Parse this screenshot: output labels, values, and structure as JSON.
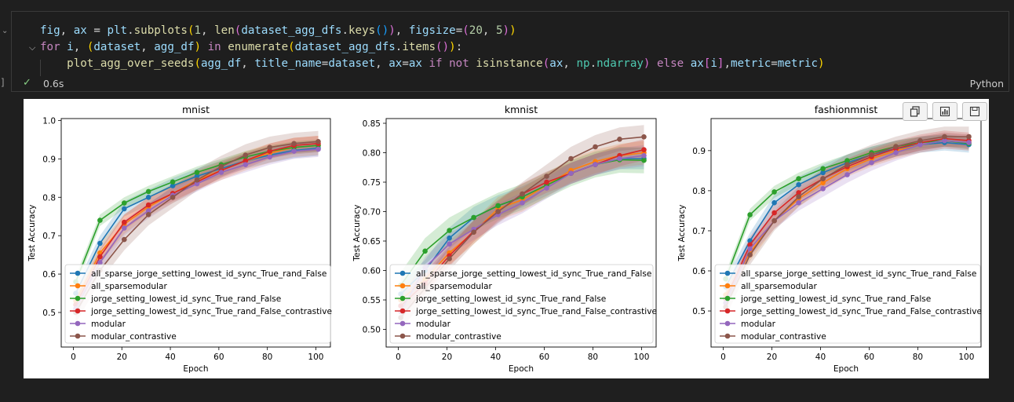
{
  "cell": {
    "code_tokens": [
      [
        [
          "var",
          "fig"
        ],
        [
          "pun",
          ", "
        ],
        [
          "var",
          "ax"
        ],
        [
          "pun",
          " = "
        ],
        [
          "var",
          "plt"
        ],
        [
          "pun",
          "."
        ],
        [
          "fn",
          "subplots"
        ],
        [
          "b1",
          "("
        ],
        [
          "num",
          "1"
        ],
        [
          "pun",
          ", "
        ],
        [
          "fn",
          "len"
        ],
        [
          "b2",
          "("
        ],
        [
          "var",
          "dataset_agg_dfs"
        ],
        [
          "pun",
          "."
        ],
        [
          "fn",
          "keys"
        ],
        [
          "b3",
          "()"
        ],
        [
          "b2",
          ")"
        ],
        [
          "pun",
          ", "
        ],
        [
          "var",
          "figsize"
        ],
        [
          "pun",
          "="
        ],
        [
          "b2",
          "("
        ],
        [
          "num",
          "20"
        ],
        [
          "pun",
          ", "
        ],
        [
          "num",
          "5"
        ],
        [
          "b2",
          ")"
        ],
        [
          "b1",
          ")"
        ]
      ],
      [
        [
          "kw",
          "for"
        ],
        [
          "pun",
          " "
        ],
        [
          "var",
          "i"
        ],
        [
          "pun",
          ", "
        ],
        [
          "b1",
          "("
        ],
        [
          "var",
          "dataset"
        ],
        [
          "pun",
          ", "
        ],
        [
          "var",
          "agg_df"
        ],
        [
          "b1",
          ")"
        ],
        [
          "pun",
          " "
        ],
        [
          "kw",
          "in"
        ],
        [
          "pun",
          " "
        ],
        [
          "fn",
          "enumerate"
        ],
        [
          "b1",
          "("
        ],
        [
          "var",
          "dataset_agg_dfs"
        ],
        [
          "pun",
          "."
        ],
        [
          "fn",
          "items"
        ],
        [
          "b2",
          "()"
        ],
        [
          "b1",
          ")"
        ],
        [
          "pun",
          ":"
        ]
      ],
      [
        [
          "pun",
          "    "
        ],
        [
          "fn",
          "plot_agg_over_seeds"
        ],
        [
          "b1",
          "("
        ],
        [
          "var",
          "agg_df"
        ],
        [
          "pun",
          ", "
        ],
        [
          "var",
          "title_name"
        ],
        [
          "pun",
          "="
        ],
        [
          "var",
          "dataset"
        ],
        [
          "pun",
          ", "
        ],
        [
          "var",
          "ax"
        ],
        [
          "pun",
          "="
        ],
        [
          "var",
          "ax"
        ],
        [
          "pun",
          " "
        ],
        [
          "kw",
          "if"
        ],
        [
          "pun",
          " "
        ],
        [
          "kw",
          "not"
        ],
        [
          "pun",
          " "
        ],
        [
          "fn",
          "isinstance"
        ],
        [
          "b2",
          "("
        ],
        [
          "var",
          "ax"
        ],
        [
          "pun",
          ", "
        ],
        [
          "cls",
          "np"
        ],
        [
          "pun",
          "."
        ],
        [
          "cls",
          "ndarray"
        ],
        [
          "b2",
          ")"
        ],
        [
          "pun",
          " "
        ],
        [
          "kw",
          "else"
        ],
        [
          "pun",
          " "
        ],
        [
          "var",
          "ax"
        ],
        [
          "b2",
          "["
        ],
        [
          "var",
          "i"
        ],
        [
          "b2",
          "]"
        ],
        [
          "pun",
          ","
        ],
        [
          "var",
          "metric"
        ],
        [
          "pun",
          "="
        ],
        [
          "var",
          "metric"
        ],
        [
          "b1",
          ")"
        ]
      ]
    ],
    "exec_time": "0.6s",
    "language": "Python",
    "exec_bracket": "]",
    "colors": {
      "success": "#89d185",
      "background": "#1f1f1f"
    }
  },
  "toolbar": {
    "icons": [
      "copy-icon",
      "chart-icon",
      "save-icon"
    ]
  },
  "chart_data": [
    {
      "type": "line",
      "title": "mnist",
      "xlabel": "Epoch",
      "ylabel": "Test Accuracy",
      "xlim": [
        -5,
        106
      ],
      "ylim": [
        0.41,
        1.005
      ],
      "xticks": [
        0,
        20,
        40,
        60,
        80,
        100
      ],
      "yticks": [
        0.5,
        0.6,
        0.7,
        0.8,
        0.9,
        1.0
      ],
      "ytick_labels": [
        "0.5",
        "0.6",
        "0.7",
        "0.8",
        "0.9",
        "1.0"
      ],
      "grid": false,
      "legend": "lower-left",
      "x": [
        1,
        11,
        21,
        31,
        41,
        51,
        61,
        71,
        81,
        91,
        101
      ],
      "series": [
        {
          "name": "all_sparse_jorge_setting_lowest_id_sync_True_rand_False",
          "color": "#1f77b4",
          "values": [
            0.55,
            0.68,
            0.77,
            0.8,
            0.83,
            0.855,
            0.875,
            0.895,
            0.91,
            0.922,
            0.928
          ],
          "band": 0.02
        },
        {
          "name": "all_sparsemodular",
          "color": "#ff7f0e",
          "values": [
            0.53,
            0.655,
            0.73,
            0.775,
            0.81,
            0.845,
            0.87,
            0.895,
            0.915,
            0.93,
            0.935
          ],
          "band": 0.025
        },
        {
          "name": "jorge_setting_lowest_id_sync_True_rand_False",
          "color": "#2ca02c",
          "values": [
            0.58,
            0.74,
            0.785,
            0.815,
            0.84,
            0.865,
            0.885,
            0.905,
            0.92,
            0.93,
            0.935
          ],
          "band": 0.015
        },
        {
          "name": "jorge_setting_lowest_id_sync_True_rand_False_contrastive",
          "color": "#d62728",
          "values": [
            0.52,
            0.645,
            0.735,
            0.78,
            0.81,
            0.84,
            0.87,
            0.895,
            0.92,
            0.935,
            0.94
          ],
          "band": 0.02
        },
        {
          "name": "modular",
          "color": "#9467bd",
          "values": [
            0.51,
            0.63,
            0.72,
            0.765,
            0.805,
            0.835,
            0.865,
            0.885,
            0.905,
            0.92,
            0.925
          ],
          "band": 0.02
        },
        {
          "name": "modular_contrastive",
          "color": "#8c564b",
          "values": [
            0.5,
            0.61,
            0.69,
            0.755,
            0.8,
            0.845,
            0.88,
            0.91,
            0.93,
            0.94,
            0.945
          ],
          "band": 0.028
        }
      ]
    },
    {
      "type": "line",
      "title": "kmnist",
      "xlabel": "Epoch",
      "ylabel": "Test Accuracy",
      "xlim": [
        -5,
        106
      ],
      "ylim": [
        0.47,
        0.858
      ],
      "xticks": [
        0,
        20,
        40,
        60,
        80,
        100
      ],
      "yticks": [
        0.5,
        0.55,
        0.6,
        0.65,
        0.7,
        0.75,
        0.8,
        0.85
      ],
      "ytick_labels": [
        "0.50",
        "0.55",
        "0.60",
        "0.65",
        "0.70",
        "0.75",
        "0.80",
        "0.85"
      ],
      "grid": false,
      "legend": "lower-left",
      "x": [
        1,
        11,
        21,
        31,
        41,
        51,
        61,
        71,
        81,
        91,
        101
      ],
      "series": [
        {
          "name": "all_sparse_jorge_setting_lowest_id_sync_True_rand_False",
          "color": "#1f77b4",
          "values": [
            0.56,
            0.6,
            0.655,
            0.69,
            0.71,
            0.725,
            0.745,
            0.765,
            0.78,
            0.79,
            0.79
          ],
          "band": 0.018
        },
        {
          "name": "all_sparsemodular",
          "color": "#ff7f0e",
          "values": [
            0.55,
            0.585,
            0.63,
            0.665,
            0.705,
            0.72,
            0.745,
            0.77,
            0.785,
            0.795,
            0.8
          ],
          "band": 0.02
        },
        {
          "name": "jorge_setting_lowest_id_sync_True_rand_False",
          "color": "#2ca02c",
          "values": [
            0.575,
            0.633,
            0.668,
            0.69,
            0.71,
            0.725,
            0.745,
            0.765,
            0.78,
            0.788,
            0.787
          ],
          "band": 0.022
        },
        {
          "name": "jorge_setting_lowest_id_sync_True_rand_False_contrastive",
          "color": "#d62728",
          "values": [
            0.54,
            0.578,
            0.625,
            0.667,
            0.7,
            0.73,
            0.75,
            0.765,
            0.78,
            0.795,
            0.805
          ],
          "band": 0.018
        },
        {
          "name": "modular",
          "color": "#9467bd",
          "values": [
            0.53,
            0.605,
            0.645,
            0.67,
            0.695,
            0.715,
            0.74,
            0.765,
            0.78,
            0.79,
            0.795
          ],
          "band": 0.018
        },
        {
          "name": "modular_contrastive",
          "color": "#8c564b",
          "values": [
            0.52,
            0.57,
            0.62,
            0.665,
            0.7,
            0.73,
            0.76,
            0.79,
            0.81,
            0.823,
            0.827
          ],
          "band": 0.02
        }
      ]
    },
    {
      "type": "line",
      "title": "fashionmnist",
      "xlabel": "Epoch",
      "ylabel": "Test Accuracy",
      "xlim": [
        -5,
        106
      ],
      "ylim": [
        0.41,
        0.98
      ],
      "xticks": [
        0,
        20,
        40,
        60,
        80,
        100
      ],
      "yticks": [
        0.5,
        0.6,
        0.7,
        0.8,
        0.9
      ],
      "ytick_labels": [
        "0.5",
        "0.6",
        "0.7",
        "0.8",
        "0.9"
      ],
      "grid": false,
      "legend": "lower-left",
      "x": [
        1,
        11,
        21,
        31,
        41,
        51,
        61,
        71,
        81,
        91,
        101
      ],
      "series": [
        {
          "name": "all_sparse_jorge_setting_lowest_id_sync_True_rand_False",
          "color": "#1f77b4",
          "values": [
            0.56,
            0.675,
            0.77,
            0.815,
            0.845,
            0.87,
            0.89,
            0.905,
            0.915,
            0.92,
            0.915
          ],
          "band": 0.02
        },
        {
          "name": "all_sparsemodular",
          "color": "#ff7f0e",
          "values": [
            0.54,
            0.645,
            0.725,
            0.78,
            0.82,
            0.855,
            0.88,
            0.9,
            0.915,
            0.925,
            0.92
          ],
          "band": 0.02
        },
        {
          "name": "jorge_setting_lowest_id_sync_True_rand_False",
          "color": "#2ca02c",
          "values": [
            0.58,
            0.74,
            0.797,
            0.83,
            0.855,
            0.875,
            0.895,
            0.91,
            0.92,
            0.925,
            0.918
          ],
          "band": 0.015
        },
        {
          "name": "jorge_setting_lowest_id_sync_True_rand_False_contrastive",
          "color": "#d62728",
          "values": [
            0.53,
            0.665,
            0.745,
            0.795,
            0.83,
            0.86,
            0.885,
            0.905,
            0.92,
            0.93,
            0.925
          ],
          "band": 0.02
        },
        {
          "name": "modular",
          "color": "#9467bd",
          "values": [
            0.52,
            0.655,
            0.725,
            0.77,
            0.805,
            0.84,
            0.87,
            0.895,
            0.915,
            0.925,
            0.92
          ],
          "band": 0.02
        },
        {
          "name": "modular_contrastive",
          "color": "#8c564b",
          "values": [
            0.51,
            0.64,
            0.725,
            0.785,
            0.83,
            0.865,
            0.89,
            0.91,
            0.925,
            0.935,
            0.935
          ],
          "band": 0.025
        }
      ]
    }
  ]
}
